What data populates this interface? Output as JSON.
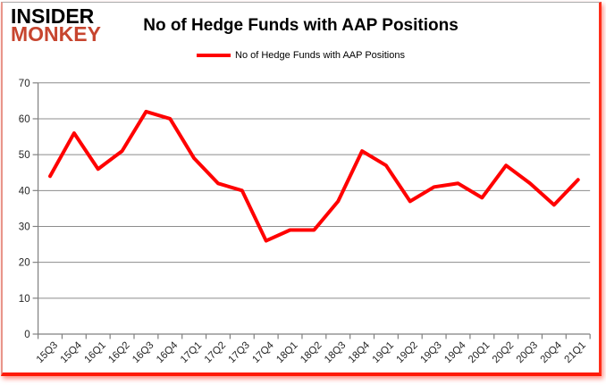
{
  "logo": {
    "line1": "INSIDER",
    "line2": "MONKEY",
    "monkey_color": "#c7452f"
  },
  "title": "No of Hedge Funds with AAP Positions",
  "legend": {
    "label": "No of Hedge Funds with AAP Positions",
    "color": "#ff0000"
  },
  "colors": {
    "line": "#ff0000",
    "grid": "#8c8c8c",
    "axis": "#808080",
    "tick_label": "#262626",
    "frame_left": "#e8958a",
    "frame_bottom_right": "#ff1a05"
  },
  "chart_data": {
    "type": "line",
    "title": "No of Hedge Funds with AAP Positions",
    "categories": [
      "15Q3",
      "15Q4",
      "16Q1",
      "16Q2",
      "16Q3",
      "16Q4",
      "17Q1",
      "17Q2",
      "17Q3",
      "17Q4",
      "18Q1",
      "18Q2",
      "18Q3",
      "18Q4",
      "19Q1",
      "19Q2",
      "19Q3",
      "19Q4",
      "20Q1",
      "20Q2",
      "20Q3",
      "20Q4",
      "21Q1"
    ],
    "series": [
      {
        "name": "No of Hedge Funds with AAP Positions",
        "color": "#ff0000",
        "values": [
          44,
          56,
          46,
          51,
          62,
          60,
          49,
          42,
          40,
          26,
          29,
          29,
          37,
          51,
          47,
          37,
          41,
          42,
          38,
          47,
          42,
          36,
          43
        ]
      }
    ],
    "xlabel": "",
    "ylabel": "",
    "ylim": [
      0,
      70
    ],
    "ytick_interval": 10,
    "yticks": [
      0,
      10,
      20,
      30,
      40,
      50,
      60,
      70
    ],
    "grid": true,
    "legend_position": "top",
    "x_label_rotation_deg": 45
  }
}
